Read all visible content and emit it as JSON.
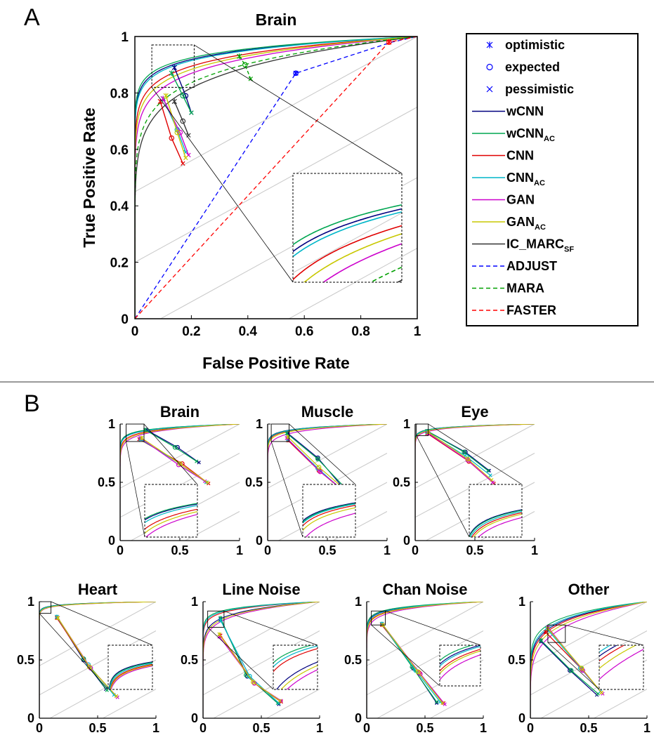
{
  "panel_labels": [
    "A",
    "B"
  ],
  "chart_data": [
    {
      "id": "A",
      "type": "line",
      "title": "Brain",
      "xlabel": "False Positive Rate",
      "ylabel": "True Positive Rate",
      "xlim": [
        0,
        1
      ],
      "ylim": [
        0,
        1
      ],
      "xticks": [
        "0",
        "0.2",
        "0.4",
        "0.6",
        "0.8",
        "1"
      ],
      "yticks": [
        "0",
        "0.2",
        "0.4",
        "0.6",
        "0.8",
        "1"
      ],
      "grid": false,
      "iso_lines": true,
      "legend": "right",
      "inset": {
        "xlim": [
          0.06,
          0.21
        ],
        "ylim": [
          0.82,
          0.97
        ],
        "placement": "bottom-right"
      },
      "series": [
        {
          "name": "wCNN",
          "label_main": "wCNN",
          "label_sub": "",
          "color": "#00007f",
          "style": "solid",
          "k": 19.0
        },
        {
          "name": "wCNNAC",
          "label_main": "wCNN",
          "label_sub": "AC",
          "color": "#00a651",
          "style": "solid",
          "k": 20.5
        },
        {
          "name": "CNN",
          "label_main": "CNN",
          "label_sub": "",
          "color": "#e00000",
          "style": "solid",
          "k": 14.5
        },
        {
          "name": "CNNAC",
          "label_main": "CNN",
          "label_sub": "AC",
          "color": "#00b6c8",
          "style": "solid",
          "k": 18.0
        },
        {
          "name": "GAN",
          "label_main": "GAN",
          "label_sub": "",
          "color": "#cc00cc",
          "style": "solid",
          "k": 11.5
        },
        {
          "name": "GANAC",
          "label_main": "GAN",
          "label_sub": "AC",
          "color": "#c8c800",
          "style": "solid",
          "k": 13.0
        },
        {
          "name": "IC_MARCSF",
          "label_main": "IC_MARC",
          "label_sub": "SF",
          "color": "#333333",
          "style": "solid",
          "k": 8.0
        },
        {
          "name": "ADJUST",
          "label_main": "ADJUST",
          "label_sub": "",
          "color": "#0000ff",
          "style": "dashed",
          "points": [
            [
              0,
              0
            ],
            [
              0.57,
              0.87
            ],
            [
              0.91,
              0.98
            ],
            [
              1,
              1
            ]
          ]
        },
        {
          "name": "MARA",
          "label_main": "MARA",
          "label_sub": "",
          "color": "#00a000",
          "style": "dashed",
          "k": 9.0
        },
        {
          "name": "FASTER",
          "label_main": "FASTER",
          "label_sub": "",
          "color": "#ff0000",
          "style": "dashed",
          "points": [
            [
              0,
              0
            ],
            [
              0.9,
              0.98
            ],
            [
              1,
              1
            ]
          ]
        }
      ],
      "markers": [
        {
          "series": "wCNN",
          "optimistic": [
            0.14,
            0.89
          ],
          "expected": [
            0.18,
            0.79
          ],
          "pessimistic": [
            0.2,
            0.73
          ]
        },
        {
          "series": "wCNNAC",
          "optimistic": [
            0.13,
            0.87
          ],
          "expected": [
            0.17,
            0.79
          ],
          "pessimistic": [
            0.2,
            0.73
          ]
        },
        {
          "series": "CNN",
          "optimistic": [
            0.09,
            0.77
          ],
          "expected": [
            0.13,
            0.64
          ],
          "pessimistic": [
            0.17,
            0.55
          ]
        },
        {
          "series": "CNNAC",
          "optimistic": [
            0.1,
            0.78
          ],
          "expected": [
            0.15,
            0.67
          ],
          "pessimistic": [
            0.18,
            0.59
          ]
        },
        {
          "series": "GAN",
          "optimistic": [
            0.1,
            0.78
          ],
          "expected": [
            0.16,
            0.66
          ],
          "pessimistic": [
            0.19,
            0.58
          ]
        },
        {
          "series": "GANAC",
          "optimistic": [
            0.11,
            0.79
          ],
          "expected": [
            0.15,
            0.66
          ],
          "pessimistic": [
            0.18,
            0.57
          ]
        },
        {
          "series": "IC_MARCSF",
          "optimistic": [
            0.14,
            0.77
          ],
          "expected": [
            0.17,
            0.7
          ],
          "pessimistic": [
            0.19,
            0.65
          ]
        },
        {
          "series": "MARA",
          "optimistic": [
            0.37,
            0.93
          ],
          "expected": [
            0.39,
            0.9
          ],
          "pessimistic": [
            0.41,
            0.85
          ]
        },
        {
          "series": "ADJUST",
          "optimistic": [
            0.57,
            0.87
          ],
          "expected": [
            0.57,
            0.87
          ],
          "pessimistic": [
            0.57,
            0.87
          ]
        },
        {
          "series": "FASTER",
          "optimistic": [
            0.9,
            0.98
          ],
          "expected": [
            0.9,
            0.98
          ],
          "pessimistic": [
            0.9,
            0.98
          ]
        }
      ],
      "legend_markers": [
        {
          "symbol": "*",
          "label": "optimistic"
        },
        {
          "symbol": "o",
          "label": "expected"
        },
        {
          "symbol": "x",
          "label": "pessimistic"
        }
      ]
    },
    {
      "id": "B-brain",
      "type": "line",
      "title": "Brain",
      "xlim": [
        0,
        1
      ],
      "ylim": [
        0,
        1
      ],
      "xticks": [
        "0",
        "0.5",
        "1"
      ],
      "yticks": [
        "0",
        "0.5",
        "1"
      ],
      "inset": {
        "xlim": [
          0.05,
          0.2
        ],
        "ylim": [
          0.85,
          1.0
        ]
      },
      "k": {
        "wCNN": 28,
        "wCNNAC": 29,
        "CNN": 22,
        "CNNAC": 26,
        "GAN": 18,
        "GANAC": 20
      },
      "markers": {
        "wCNN": [
          [
            0.22,
            0.95
          ],
          [
            0.48,
            0.8
          ],
          [
            0.66,
            0.67
          ]
        ],
        "wCNNAC": [
          [
            0.21,
            0.95
          ],
          [
            0.46,
            0.8
          ],
          [
            0.64,
            0.68
          ]
        ],
        "CNN": [
          [
            0.16,
            0.87
          ],
          [
            0.52,
            0.66
          ],
          [
            0.74,
            0.49
          ]
        ],
        "CNNAC": [
          [
            0.17,
            0.87
          ],
          [
            0.5,
            0.66
          ],
          [
            0.72,
            0.5
          ]
        ],
        "GAN": [
          [
            0.17,
            0.88
          ],
          [
            0.49,
            0.65
          ],
          [
            0.71,
            0.51
          ]
        ],
        "GANAC": [
          [
            0.18,
            0.88
          ],
          [
            0.5,
            0.66
          ],
          [
            0.73,
            0.5
          ]
        ]
      }
    },
    {
      "id": "B-muscle",
      "type": "line",
      "title": "Muscle",
      "xlim": [
        0,
        1
      ],
      "ylim": [
        0,
        1
      ],
      "xticks": [
        "0",
        "0.5",
        "1"
      ],
      "yticks": [
        "0",
        "0.5",
        "1"
      ],
      "inset": {
        "xlim": [
          0.03,
          0.18
        ],
        "ylim": [
          0.85,
          1.0
        ]
      },
      "k": {
        "wCNN": 32,
        "wCNNAC": 31,
        "CNN": 28,
        "CNNAC": 30,
        "GAN": 20,
        "GANAC": 25
      },
      "markers": {
        "wCNN": [
          [
            0.17,
            0.92
          ],
          [
            0.42,
            0.71
          ],
          [
            0.66,
            0.42
          ]
        ],
        "wCNNAC": [
          [
            0.16,
            0.92
          ],
          [
            0.42,
            0.7
          ],
          [
            0.67,
            0.43
          ]
        ],
        "CNN": [
          [
            0.17,
            0.86
          ],
          [
            0.43,
            0.6
          ],
          [
            0.69,
            0.38
          ]
        ],
        "CNNAC": [
          [
            0.17,
            0.87
          ],
          [
            0.42,
            0.62
          ],
          [
            0.66,
            0.4
          ]
        ],
        "GAN": [
          [
            0.16,
            0.88
          ],
          [
            0.44,
            0.59
          ],
          [
            0.7,
            0.38
          ]
        ],
        "GANAC": [
          [
            0.17,
            0.89
          ],
          [
            0.43,
            0.63
          ],
          [
            0.68,
            0.41
          ]
        ]
      }
    },
    {
      "id": "B-eye",
      "type": "line",
      "title": "Eye",
      "xlim": [
        0,
        1
      ],
      "ylim": [
        0,
        1
      ],
      "xticks": [
        "0",
        "0.5",
        "1"
      ],
      "yticks": [
        "0",
        "0.5",
        "1"
      ],
      "inset": {
        "xlim": [
          0.01,
          0.11
        ],
        "ylim": [
          0.9,
          1.0
        ]
      },
      "k": {
        "wCNN": 45,
        "wCNNAC": 44,
        "CNN": 40,
        "CNNAC": 42,
        "GAN": 34,
        "GANAC": 38
      },
      "markers": {
        "wCNN": [
          [
            0.1,
            0.94
          ],
          [
            0.42,
            0.76
          ],
          [
            0.62,
            0.6
          ]
        ],
        "wCNNAC": [
          [
            0.1,
            0.94
          ],
          [
            0.41,
            0.76
          ],
          [
            0.61,
            0.6
          ]
        ],
        "CNN": [
          [
            0.1,
            0.92
          ],
          [
            0.45,
            0.68
          ],
          [
            0.66,
            0.49
          ]
        ],
        "CNNAC": [
          [
            0.1,
            0.93
          ],
          [
            0.43,
            0.72
          ],
          [
            0.63,
            0.56
          ]
        ],
        "GAN": [
          [
            0.11,
            0.92
          ],
          [
            0.44,
            0.69
          ],
          [
            0.65,
            0.5
          ]
        ],
        "GANAC": [
          [
            0.11,
            0.93
          ],
          [
            0.44,
            0.7
          ],
          [
            0.64,
            0.52
          ]
        ]
      }
    },
    {
      "id": "B-heart",
      "type": "line",
      "title": "Heart",
      "xlim": [
        0,
        1
      ],
      "ylim": [
        0,
        1
      ],
      "xticks": [
        "0",
        "0.5",
        "1"
      ],
      "yticks": [
        "0",
        "0.5",
        "1"
      ],
      "inset": {
        "xlim": [
          0.0,
          0.1
        ],
        "ylim": [
          0.9,
          1.0
        ]
      },
      "k": {
        "wCNN": 60,
        "wCNNAC": 58,
        "CNN": 52,
        "CNNAC": 55,
        "GAN": 48,
        "GANAC": 50
      },
      "markers": {
        "wCNN": [
          [
            0.15,
            0.87
          ],
          [
            0.38,
            0.5
          ],
          [
            0.57,
            0.25
          ]
        ],
        "wCNNAC": [
          [
            0.15,
            0.87
          ],
          [
            0.38,
            0.51
          ],
          [
            0.58,
            0.24
          ]
        ],
        "CNN": [
          [
            0.15,
            0.86
          ],
          [
            0.43,
            0.44
          ],
          [
            0.66,
            0.19
          ]
        ],
        "CNNAC": [
          [
            0.15,
            0.87
          ],
          [
            0.42,
            0.46
          ],
          [
            0.64,
            0.2
          ]
        ],
        "GAN": [
          [
            0.16,
            0.86
          ],
          [
            0.44,
            0.43
          ],
          [
            0.67,
            0.18
          ]
        ],
        "GANAC": [
          [
            0.16,
            0.86
          ],
          [
            0.43,
            0.44
          ],
          [
            0.66,
            0.19
          ]
        ]
      }
    },
    {
      "id": "B-line-noise",
      "type": "line",
      "title": "Line Noise",
      "xlim": [
        0,
        1
      ],
      "ylim": [
        0,
        1
      ],
      "xticks": [
        "0",
        "0.5",
        "1"
      ],
      "yticks": [
        "0",
        "0.5",
        "1"
      ],
      "inset": {
        "xlim": [
          0.04,
          0.18
        ],
        "ylim": [
          0.78,
          0.92
        ]
      },
      "k": {
        "wCNN": 12,
        "wCNNAC": 22,
        "CNN": 18,
        "CNNAC": 20,
        "GAN": 10,
        "GANAC": 11
      },
      "markers": {
        "wCNN": [
          [
            0.15,
            0.85
          ],
          [
            0.38,
            0.36
          ],
          [
            0.65,
            0.12
          ]
        ],
        "wCNNAC": [
          [
            0.15,
            0.86
          ],
          [
            0.37,
            0.37
          ],
          [
            0.64,
            0.13
          ]
        ],
        "CNN": [
          [
            0.15,
            0.71
          ],
          [
            0.44,
            0.3
          ],
          [
            0.67,
            0.14
          ]
        ],
        "CNNAC": [
          [
            0.15,
            0.84
          ],
          [
            0.4,
            0.36
          ],
          [
            0.65,
            0.13
          ]
        ],
        "GAN": [
          [
            0.14,
            0.7
          ],
          [
            0.44,
            0.3
          ],
          [
            0.67,
            0.15
          ]
        ],
        "GANAC": [
          [
            0.14,
            0.72
          ],
          [
            0.43,
            0.31
          ],
          [
            0.66,
            0.15
          ]
        ]
      }
    },
    {
      "id": "B-chan-noise",
      "type": "line",
      "title": "Chan Noise",
      "xlim": [
        0,
        1
      ],
      "ylim": [
        0,
        1
      ],
      "xticks": [
        "0",
        "0.5",
        "1"
      ],
      "yticks": [
        "0",
        "0.5",
        "1"
      ],
      "inset": {
        "xlim": [
          0.04,
          0.16
        ],
        "ylim": [
          0.8,
          0.92
        ]
      },
      "k": {
        "wCNN": 22,
        "wCNNAC": 24,
        "CNN": 19,
        "CNNAC": 21,
        "GAN": 16,
        "GANAC": 18
      },
      "markers": {
        "wCNN": [
          [
            0.13,
            0.81
          ],
          [
            0.4,
            0.43
          ],
          [
            0.6,
            0.13
          ]
        ],
        "wCNNAC": [
          [
            0.13,
            0.81
          ],
          [
            0.39,
            0.44
          ],
          [
            0.6,
            0.14
          ]
        ],
        "CNN": [
          [
            0.13,
            0.8
          ],
          [
            0.45,
            0.39
          ],
          [
            0.66,
            0.13
          ]
        ],
        "CNNAC": [
          [
            0.13,
            0.81
          ],
          [
            0.42,
            0.41
          ],
          [
            0.63,
            0.14
          ]
        ],
        "GAN": [
          [
            0.14,
            0.8
          ],
          [
            0.46,
            0.38
          ],
          [
            0.67,
            0.12
          ]
        ],
        "GANAC": [
          [
            0.14,
            0.8
          ],
          [
            0.44,
            0.4
          ],
          [
            0.65,
            0.13
          ]
        ]
      }
    },
    {
      "id": "B-other",
      "type": "line",
      "title": "Other",
      "xlim": [
        0,
        1
      ],
      "ylim": [
        0,
        1
      ],
      "xticks": [
        "0",
        "0.5",
        "1"
      ],
      "yticks": [
        "0",
        "0.5",
        "1"
      ],
      "inset": {
        "xlim": [
          0.15,
          0.3
        ],
        "ylim": [
          0.65,
          0.8
        ]
      },
      "k": {
        "wCNN": 7,
        "wCNNAC": 8.5,
        "CNN": 6.5,
        "CNNAC": 7.5,
        "GAN": 5,
        "GANAC": 5.8
      },
      "markers": {
        "wCNN": [
          [
            0.09,
            0.66
          ],
          [
            0.34,
            0.41
          ],
          [
            0.57,
            0.2
          ]
        ],
        "wCNNAC": [
          [
            0.09,
            0.67
          ],
          [
            0.35,
            0.41
          ],
          [
            0.58,
            0.21
          ]
        ],
        "CNN": [
          [
            0.13,
            0.74
          ],
          [
            0.44,
            0.42
          ],
          [
            0.61,
            0.22
          ]
        ],
        "CNNAC": [
          [
            0.14,
            0.77
          ],
          [
            0.43,
            0.43
          ],
          [
            0.6,
            0.23
          ]
        ],
        "GAN": [
          [
            0.15,
            0.78
          ],
          [
            0.45,
            0.41
          ],
          [
            0.62,
            0.21
          ]
        ],
        "GANAC": [
          [
            0.15,
            0.77
          ],
          [
            0.44,
            0.43
          ],
          [
            0.61,
            0.22
          ]
        ]
      }
    }
  ]
}
